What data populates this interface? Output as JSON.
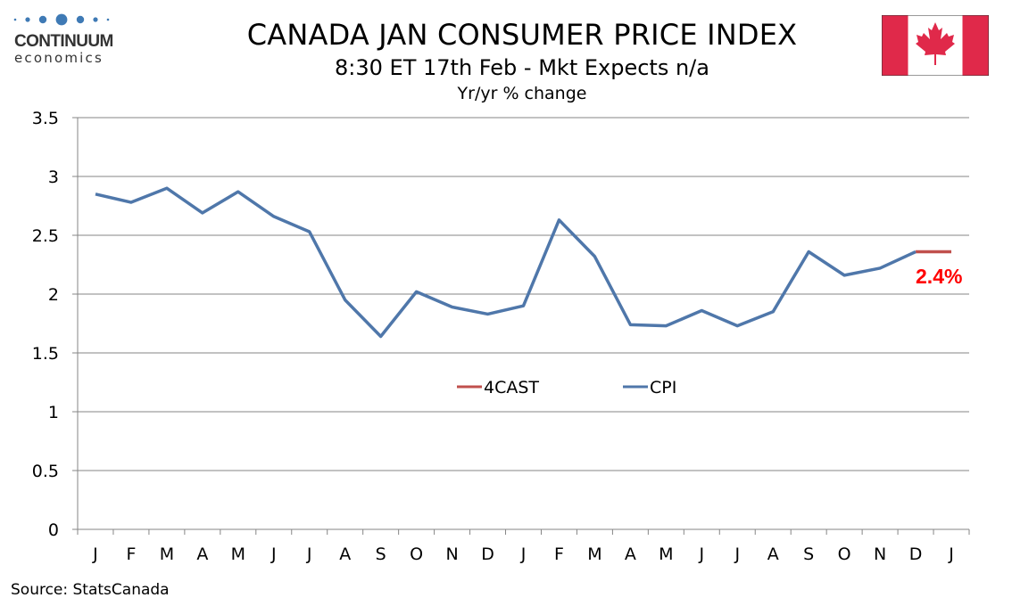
{
  "logo": {
    "word": "CONTINUUM",
    "sub": "economics",
    "name": "Continuum Economics"
  },
  "header": {
    "title": "CANADA JAN CONSUMER PRICE INDEX",
    "subtitle": "8:30 ET 17th Feb - Mkt Expects n/a",
    "units": "Yr/yr % change"
  },
  "flag": {
    "country": "Canada",
    "red": "#E0294A",
    "white": "#FFFFFF"
  },
  "source": "Source: StatsCanada",
  "chart_data": {
    "type": "line",
    "title": "CANADA JAN CONSUMER PRICE INDEX",
    "subtitle": "8:30 ET 17th Feb - Mkt Expects n/a",
    "ylabel": "Yr/yr % change",
    "xlabel": "",
    "ylim": [
      0,
      3.5
    ],
    "yticks": [
      0,
      0.5,
      1,
      1.5,
      2,
      2.5,
      3,
      3.5
    ],
    "ytick_labels": [
      "0",
      "0.5",
      "1",
      "1.5",
      "2",
      "2.5",
      "3",
      "3.5"
    ],
    "grid": true,
    "categories": [
      "J",
      "F",
      "M",
      "A",
      "M",
      "J",
      "J",
      "A",
      "S",
      "O",
      "N",
      "D",
      "J",
      "F",
      "M",
      "A",
      "M",
      "J",
      "J",
      "A",
      "S",
      "O",
      "N",
      "D",
      "J"
    ],
    "series": [
      {
        "name": "4CAST",
        "color": "#C0504D",
        "values": [
          null,
          null,
          null,
          null,
          null,
          null,
          null,
          null,
          null,
          null,
          null,
          null,
          null,
          null,
          null,
          null,
          null,
          null,
          null,
          null,
          null,
          null,
          null,
          2.36,
          2.36
        ]
      },
      {
        "name": "CPI",
        "color": "#4F77AA",
        "values": [
          2.85,
          2.78,
          2.9,
          2.69,
          2.87,
          2.66,
          2.53,
          1.95,
          1.64,
          2.02,
          1.89,
          1.83,
          1.9,
          2.63,
          2.32,
          1.74,
          1.73,
          1.86,
          1.73,
          1.85,
          2.36,
          2.16,
          2.22,
          2.36,
          null
        ]
      }
    ],
    "annotations": [
      {
        "text": "2.4%",
        "color": "#FF0000",
        "at_category_index": 24
      }
    ],
    "legend": {
      "placement": "center",
      "entries": [
        "4CAST",
        "CPI"
      ]
    }
  }
}
